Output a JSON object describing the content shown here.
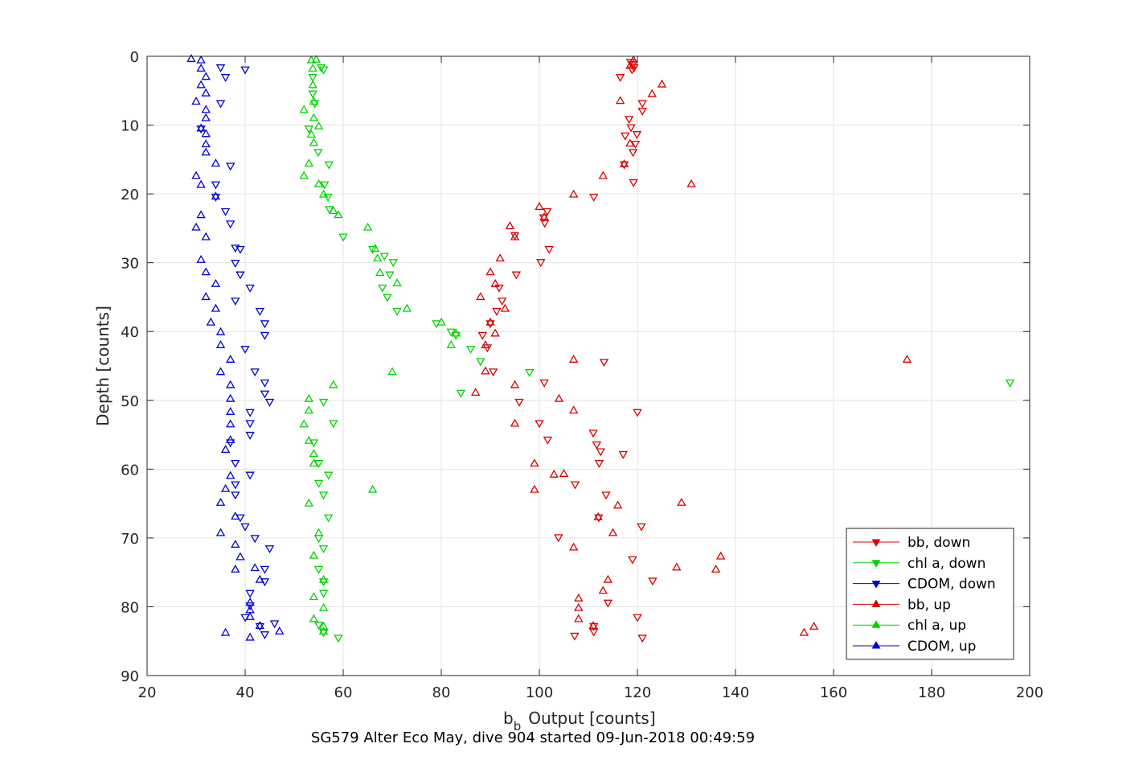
{
  "chart_data": {
    "type": "scatter",
    "xlabel_main": "b",
    "xlabel_sub": "b",
    "xlabel_rest": "Output [counts]",
    "ylabel": "Depth [counts]",
    "caption": "SG579 Alter Eco May, dive 904 started 09-Jun-2018 00:49:59",
    "xlim": [
      20,
      200
    ],
    "ylim": [
      0,
      90
    ],
    "y_reversed": true,
    "grid": true,
    "legend_position": "bottom-right",
    "xticks": [
      "20",
      "40",
      "60",
      "80",
      "100",
      "120",
      "140",
      "160",
      "180",
      "200"
    ],
    "yticks": [
      "0",
      "10",
      "20",
      "30",
      "40",
      "50",
      "60",
      "70",
      "80",
      "90"
    ],
    "series": [
      {
        "name": "bb, down",
        "color": "#d90000",
        "marker": "triangle-down",
        "points": [
          [
            118.6,
            0.8
          ],
          [
            119.1,
            1.1
          ],
          [
            119.3,
            1.6
          ],
          [
            118.9,
            1.9
          ],
          [
            116.5,
            3.0
          ],
          [
            121.0,
            6.8
          ],
          [
            121.0,
            7.9
          ],
          [
            118.3,
            9.1
          ],
          [
            118.7,
            10.3
          ],
          [
            119.9,
            11.3
          ],
          [
            117.5,
            11.5
          ],
          [
            119.6,
            12.7
          ],
          [
            119.1,
            13.9
          ],
          [
            117.3,
            15.7
          ],
          [
            119.2,
            18.3
          ],
          [
            111.1,
            20.4
          ],
          [
            101.6,
            22.5
          ],
          [
            100.9,
            23.4
          ],
          [
            101.1,
            24.2
          ],
          [
            95.0,
            26.0
          ],
          [
            102.0,
            28.0
          ],
          [
            100.3,
            29.9
          ],
          [
            95.3,
            31.7
          ],
          [
            91.8,
            33.6
          ],
          [
            92.4,
            35.5
          ],
          [
            91.3,
            37.0
          ],
          [
            90.0,
            38.8
          ],
          [
            88.4,
            40.5
          ],
          [
            89.4,
            42.3
          ],
          [
            90.6,
            45.8
          ],
          [
            101.0,
            47.4
          ],
          [
            95.9,
            50.2
          ],
          [
            100.0,
            53.3
          ],
          [
            101.7,
            55.7
          ],
          [
            111.0,
            54.7
          ],
          [
            111.7,
            56.4
          ],
          [
            112.5,
            57.4
          ],
          [
            117.1,
            57.8
          ],
          [
            112.2,
            59.1
          ],
          [
            107.3,
            62.2
          ],
          [
            113.6,
            63.7
          ],
          [
            112.1,
            67.0
          ],
          [
            120.8,
            68.3
          ],
          [
            103.9,
            69.9
          ],
          [
            119.0,
            73.1
          ],
          [
            123.1,
            76.2
          ],
          [
            114.0,
            79.4
          ],
          [
            120.0,
            81.5
          ],
          [
            111.1,
            82.8
          ],
          [
            111.1,
            83.6
          ],
          [
            107.2,
            84.2
          ],
          [
            121.0,
            84.5
          ],
          [
            120.0,
            51.7
          ],
          [
            113.2,
            44.4
          ]
        ]
      },
      {
        "name": "chl a, down",
        "color": "#00d400",
        "marker": "triangle-down",
        "points": [
          [
            55.5,
            1.6
          ],
          [
            56.0,
            1.9
          ],
          [
            53.8,
            3.0
          ],
          [
            53.8,
            5.4
          ],
          [
            54.2,
            6.8
          ],
          [
            53.0,
            10.5
          ],
          [
            54.9,
            13.9
          ],
          [
            57.1,
            15.7
          ],
          [
            56.2,
            18.6
          ],
          [
            56.9,
            20.4
          ],
          [
            57.2,
            22.2
          ],
          [
            60.0,
            26.2
          ],
          [
            66.0,
            28.0
          ],
          [
            68.4,
            29.0
          ],
          [
            70.2,
            29.9
          ],
          [
            69.5,
            31.7
          ],
          [
            68.0,
            33.6
          ],
          [
            69.0,
            35.0
          ],
          [
            71.0,
            37.0
          ],
          [
            79.0,
            38.8
          ],
          [
            83.0,
            40.5
          ],
          [
            82.0,
            40.0
          ],
          [
            86.0,
            42.5
          ],
          [
            88.0,
            44.3
          ],
          [
            84.0,
            48.9
          ],
          [
            98.0,
            45.9
          ],
          [
            196.0,
            47.4
          ],
          [
            56.0,
            50.2
          ],
          [
            58.0,
            53.3
          ],
          [
            54.0,
            56.1
          ],
          [
            55.0,
            59.1
          ],
          [
            57.0,
            60.8
          ],
          [
            56.0,
            63.7
          ],
          [
            57.0,
            67.0
          ],
          [
            55.0,
            70.0
          ],
          [
            56.0,
            71.5
          ],
          [
            55.0,
            74.5
          ],
          [
            56.0,
            76.3
          ],
          [
            56.0,
            78.0
          ],
          [
            55.0,
            82.6
          ],
          [
            56.0,
            83.7
          ],
          [
            59.0,
            84.5
          ],
          [
            55.0,
            62.0
          ]
        ]
      },
      {
        "name": "CDOM, down",
        "color": "#0000d4",
        "marker": "triangle-down",
        "points": [
          [
            35.0,
            1.6
          ],
          [
            40.0,
            1.9
          ],
          [
            36.0,
            3.0
          ],
          [
            35.0,
            6.8
          ],
          [
            31.0,
            10.5
          ],
          [
            37.0,
            15.9
          ],
          [
            34.0,
            18.6
          ],
          [
            34.0,
            20.4
          ],
          [
            36.0,
            22.5
          ],
          [
            37.0,
            24.3
          ],
          [
            38.0,
            27.8
          ],
          [
            39.0,
            28.0
          ],
          [
            38.0,
            30.0
          ],
          [
            39.0,
            31.7
          ],
          [
            41.0,
            33.6
          ],
          [
            38.0,
            35.5
          ],
          [
            43.0,
            37.0
          ],
          [
            44.0,
            38.8
          ],
          [
            44.0,
            40.5
          ],
          [
            40.0,
            42.5
          ],
          [
            42.0,
            45.8
          ],
          [
            44.0,
            47.4
          ],
          [
            44.0,
            49.0
          ],
          [
            45.0,
            50.2
          ],
          [
            41.0,
            51.7
          ],
          [
            41.0,
            53.3
          ],
          [
            41.0,
            55.0
          ],
          [
            37.0,
            56.1
          ],
          [
            38.0,
            59.1
          ],
          [
            41.0,
            60.8
          ],
          [
            38.0,
            62.2
          ],
          [
            38.0,
            63.7
          ],
          [
            39.0,
            67.0
          ],
          [
            40.0,
            68.3
          ],
          [
            42.0,
            70.0
          ],
          [
            45.0,
            71.5
          ],
          [
            44.0,
            74.5
          ],
          [
            44.0,
            76.3
          ],
          [
            41.0,
            78.0
          ],
          [
            41.0,
            79.8
          ],
          [
            40.0,
            81.5
          ],
          [
            43.0,
            82.8
          ],
          [
            44.0,
            84.0
          ],
          [
            46.0,
            82.4
          ]
        ]
      },
      {
        "name": "bb, up",
        "color": "#d90000",
        "marker": "triangle-up",
        "points": [
          [
            119.2,
            0.6
          ],
          [
            118.5,
            1.4
          ],
          [
            125.0,
            4.1
          ],
          [
            123.0,
            5.5
          ],
          [
            116.5,
            6.5
          ],
          [
            118.5,
            12.7
          ],
          [
            117.3,
            15.7
          ],
          [
            113.0,
            17.4
          ],
          [
            131.0,
            18.6
          ],
          [
            107.0,
            20.1
          ],
          [
            100.0,
            21.9
          ],
          [
            101.0,
            23.4
          ],
          [
            94.0,
            24.7
          ],
          [
            95.0,
            26.3
          ],
          [
            92.0,
            29.4
          ],
          [
            90.0,
            31.4
          ],
          [
            91.0,
            33.1
          ],
          [
            88.0,
            35.0
          ],
          [
            93.0,
            36.7
          ],
          [
            90.0,
            38.7
          ],
          [
            91.0,
            40.3
          ],
          [
            89.0,
            42.0
          ],
          [
            89.0,
            45.8
          ],
          [
            95.0,
            47.8
          ],
          [
            87.0,
            48.9
          ],
          [
            104.0,
            49.8
          ],
          [
            107.0,
            51.5
          ],
          [
            95.0,
            53.4
          ],
          [
            99.0,
            59.2
          ],
          [
            103.0,
            60.8
          ],
          [
            105.0,
            60.7
          ],
          [
            99.0,
            63.0
          ],
          [
            116.0,
            65.3
          ],
          [
            112.0,
            67.0
          ],
          [
            115.0,
            69.3
          ],
          [
            107.0,
            71.4
          ],
          [
            128.0,
            74.3
          ],
          [
            137.0,
            72.7
          ],
          [
            136.0,
            74.6
          ],
          [
            114.0,
            76.1
          ],
          [
            113.0,
            77.7
          ],
          [
            108.0,
            78.8
          ],
          [
            108.0,
            80.2
          ],
          [
            108.0,
            81.8
          ],
          [
            111.0,
            82.8
          ],
          [
            154.0,
            83.8
          ],
          [
            156.0,
            82.9
          ],
          [
            129.0,
            64.9
          ],
          [
            107.0,
            44.1
          ],
          [
            175.0,
            44.1
          ]
        ]
      },
      {
        "name": "chl a, up",
        "color": "#00d400",
        "marker": "triangle-up",
        "points": [
          [
            53.5,
            0.6
          ],
          [
            54.5,
            0.5
          ],
          [
            53.8,
            1.8
          ],
          [
            53.8,
            4.2
          ],
          [
            54.0,
            6.6
          ],
          [
            52.0,
            7.8
          ],
          [
            54.0,
            9.0
          ],
          [
            55.0,
            10.2
          ],
          [
            53.5,
            11.4
          ],
          [
            54.0,
            12.6
          ],
          [
            53.0,
            15.6
          ],
          [
            52.0,
            17.4
          ],
          [
            55.0,
            18.6
          ],
          [
            56.0,
            20.1
          ],
          [
            58.0,
            22.5
          ],
          [
            59.0,
            23.1
          ],
          [
            65.0,
            24.9
          ],
          [
            66.5,
            28.0
          ],
          [
            67.0,
            29.4
          ],
          [
            67.5,
            31.5
          ],
          [
            71.0,
            33.0
          ],
          [
            73.0,
            36.7
          ],
          [
            80.0,
            38.7
          ],
          [
            83.0,
            40.3
          ],
          [
            82.0,
            42.0
          ],
          [
            70.0,
            45.9
          ],
          [
            58.0,
            47.8
          ],
          [
            53.0,
            49.8
          ],
          [
            53.0,
            51.5
          ],
          [
            52.0,
            53.5
          ],
          [
            53.0,
            55.9
          ],
          [
            54.0,
            57.8
          ],
          [
            54.0,
            59.2
          ],
          [
            53.0,
            65.0
          ],
          [
            66.0,
            63.0
          ],
          [
            55.0,
            69.3
          ],
          [
            54.0,
            72.6
          ],
          [
            56.0,
            76.1
          ],
          [
            54.0,
            78.6
          ],
          [
            56.0,
            80.2
          ],
          [
            54.0,
            81.8
          ],
          [
            56.0,
            82.9
          ],
          [
            56.0,
            83.6
          ]
        ]
      },
      {
        "name": "CDOM, up",
        "color": "#0000d4",
        "marker": "triangle-up",
        "points": [
          [
            29.0,
            0.4
          ],
          [
            31.0,
            0.6
          ],
          [
            31.0,
            1.8
          ],
          [
            32.0,
            3.0
          ],
          [
            31.0,
            4.2
          ],
          [
            32.0,
            5.4
          ],
          [
            30.0,
            6.6
          ],
          [
            32.0,
            7.8
          ],
          [
            32.0,
            9.0
          ],
          [
            31.0,
            10.5
          ],
          [
            32.0,
            11.3
          ],
          [
            32.0,
            12.8
          ],
          [
            32.0,
            14.0
          ],
          [
            34.0,
            15.6
          ],
          [
            30.0,
            17.4
          ],
          [
            31.0,
            18.7
          ],
          [
            34.0,
            20.4
          ],
          [
            31.0,
            23.1
          ],
          [
            30.0,
            24.9
          ],
          [
            32.0,
            26.3
          ],
          [
            31.0,
            29.6
          ],
          [
            32.0,
            31.4
          ],
          [
            34.0,
            33.1
          ],
          [
            32.0,
            35.0
          ],
          [
            34.0,
            36.7
          ],
          [
            33.0,
            38.7
          ],
          [
            35.0,
            40.1
          ],
          [
            35.0,
            42.0
          ],
          [
            37.0,
            44.1
          ],
          [
            35.0,
            45.9
          ],
          [
            37.0,
            47.8
          ],
          [
            37.0,
            49.8
          ],
          [
            37.0,
            51.7
          ],
          [
            37.0,
            53.5
          ],
          [
            37.0,
            55.8
          ],
          [
            36.0,
            57.2
          ],
          [
            37.0,
            61.0
          ],
          [
            36.0,
            62.9
          ],
          [
            35.0,
            64.9
          ],
          [
            38.0,
            66.9
          ],
          [
            35.0,
            69.3
          ],
          [
            38.0,
            71.0
          ],
          [
            39.0,
            72.8
          ],
          [
            38.0,
            74.6
          ],
          [
            42.0,
            74.4
          ],
          [
            43.0,
            76.1
          ],
          [
            41.0,
            79.4
          ],
          [
            41.0,
            80.5
          ],
          [
            41.0,
            81.5
          ],
          [
            43.0,
            82.8
          ],
          [
            36.0,
            83.8
          ],
          [
            41.0,
            84.5
          ],
          [
            47.0,
            83.6
          ]
        ]
      }
    ]
  }
}
